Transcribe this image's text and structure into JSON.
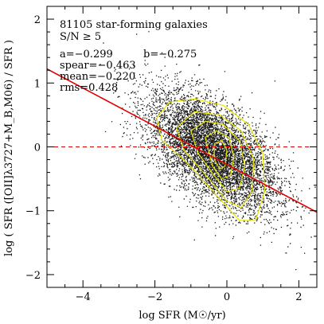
{
  "chart_data": {
    "type": "scatter",
    "title": "81105 star-forming galaxies",
    "subtitle": "S/N ≥ 5",
    "xlabel": "log SFR (M☉/yr)",
    "ylabel": "log ( SFR ([OII]λ3727+M_B,M06) / SFR )",
    "xlim": [
      -5,
      2.5
    ],
    "ylim": [
      -2.2,
      2.2
    ],
    "x_ticks": [
      -4,
      -2,
      0,
      2
    ],
    "y_ticks": [
      -2,
      -1,
      0,
      1,
      2
    ],
    "x_tick_labels": [
      "−4",
      "−2",
      "0",
      "2"
    ],
    "y_tick_labels": [
      "−2",
      "−1",
      "0",
      "1",
      "2"
    ],
    "stats": {
      "a": "a=−0.299",
      "b": "b=−0.275",
      "spear": "spear=−0.463",
      "mean": "mean=−0.220",
      "rms": "rms=0.428"
    },
    "fit_line": {
      "slope": -0.299,
      "intercept": -0.275,
      "color": "#e00000"
    },
    "zero_line": {
      "y": 0,
      "style": "dashed",
      "color": "#e00000"
    },
    "point_cloud": {
      "n_points": 81105,
      "center": [
        -0.4,
        -0.3
      ],
      "color": "#000000"
    },
    "contour_color": "#e6e600",
    "contours": [
      [
        [
          -1.95,
          0.45
        ],
        [
          -1.6,
          0.7
        ],
        [
          -0.9,
          0.75
        ],
        [
          -0.1,
          0.65
        ],
        [
          0.6,
          0.35
        ],
        [
          1.0,
          -0.1
        ],
        [
          1.05,
          -0.7
        ],
        [
          0.8,
          -1.15
        ],
        [
          0.35,
          -1.15
        ],
        [
          -0.3,
          -0.75
        ],
        [
          -1.1,
          -0.25
        ],
        [
          -1.8,
          0.1
        ]
      ],
      [
        [
          -1.4,
          0.3
        ],
        [
          -0.9,
          0.55
        ],
        [
          -0.2,
          0.5
        ],
        [
          0.4,
          0.25
        ],
        [
          0.75,
          -0.2
        ],
        [
          0.7,
          -0.7
        ],
        [
          0.4,
          -0.95
        ],
        [
          0.0,
          -0.85
        ],
        [
          -0.5,
          -0.5
        ],
        [
          -1.2,
          -0.05
        ]
      ],
      [
        [
          -1.0,
          0.25
        ],
        [
          -0.6,
          0.4
        ],
        [
          -0.1,
          0.35
        ],
        [
          0.35,
          0.1
        ],
        [
          0.5,
          -0.3
        ],
        [
          0.35,
          -0.65
        ],
        [
          0.0,
          -0.7
        ],
        [
          -0.35,
          -0.45
        ],
        [
          -0.8,
          -0.1
        ]
      ],
      [
        [
          -0.6,
          0.15
        ],
        [
          -0.3,
          0.25
        ],
        [
          0.05,
          0.15
        ],
        [
          0.2,
          -0.15
        ],
        [
          0.1,
          -0.45
        ],
        [
          -0.15,
          -0.5
        ],
        [
          -0.4,
          -0.3
        ]
      ],
      [
        [
          -0.35,
          0.05
        ],
        [
          -0.15,
          0.1
        ],
        [
          0.0,
          -0.05
        ],
        [
          -0.05,
          -0.3
        ],
        [
          -0.2,
          -0.35
        ],
        [
          -0.35,
          -0.2
        ]
      ]
    ]
  }
}
